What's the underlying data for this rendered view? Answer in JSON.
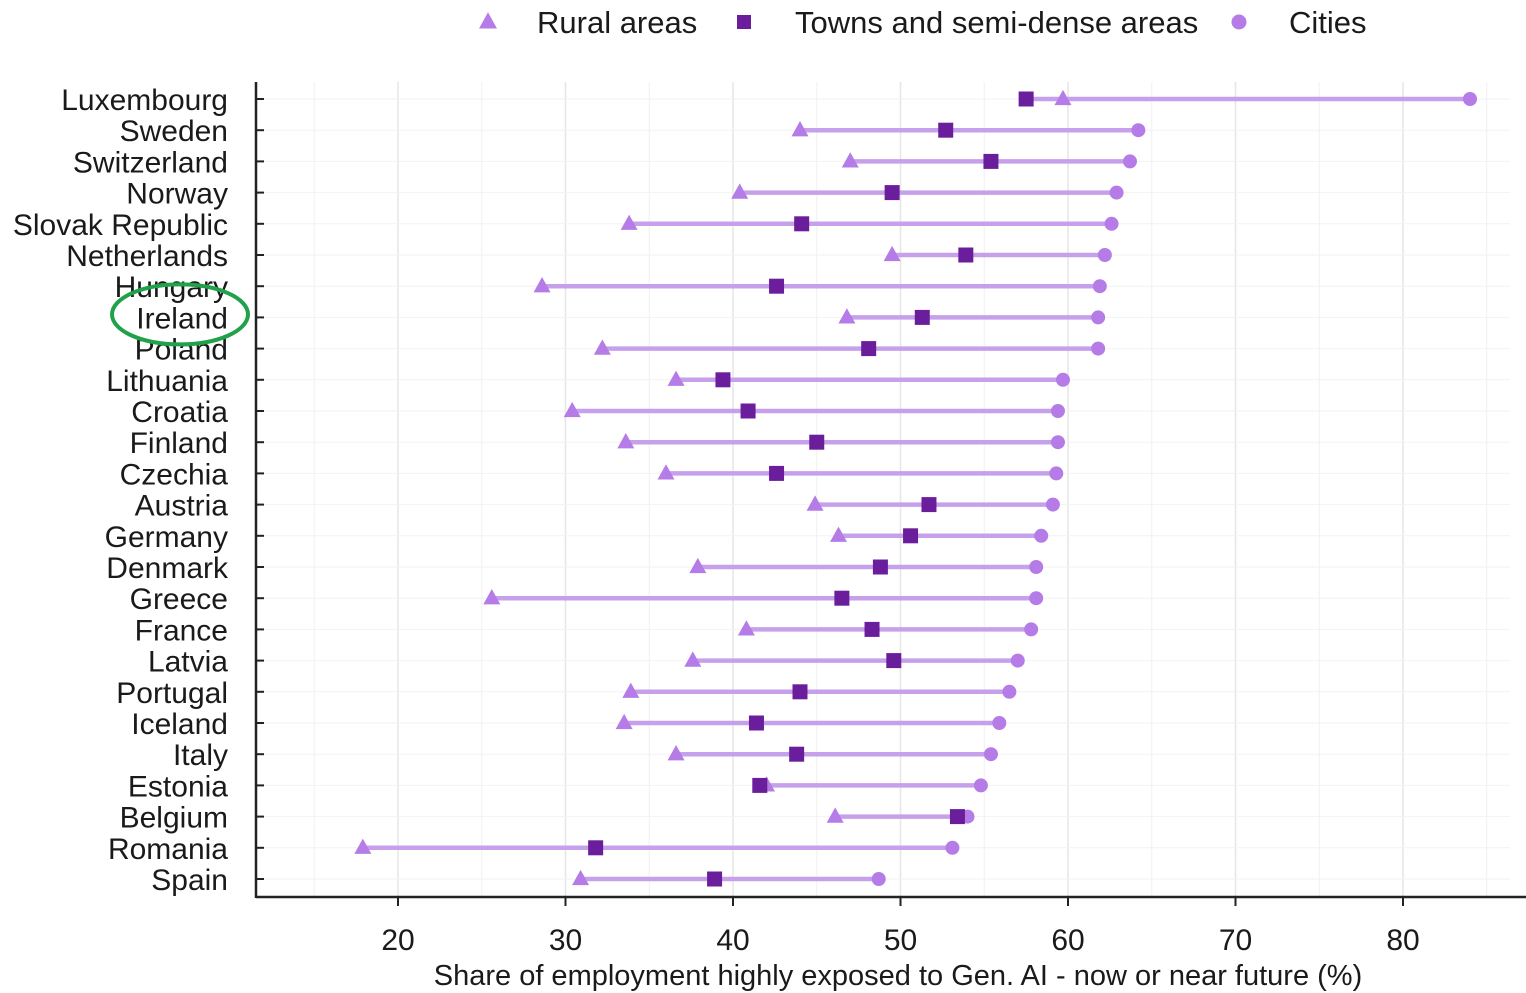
{
  "chart_data": {
    "type": "dot-range",
    "xlabel": "Share of employment highly exposed to Gen. AI - now or near future (%)",
    "xlim": [
      12,
      86
    ],
    "xticks": [
      20,
      30,
      40,
      50,
      60,
      70,
      80
    ],
    "grid": true,
    "legend_position": "top",
    "colors": {
      "range_line": "#c7a0ec",
      "rural": "#b57be6",
      "towns": "#6a1e9c",
      "cities": "#b57be6",
      "highlight_ellipse": "#1fa24a"
    },
    "series": [
      {
        "key": "rural",
        "name": "Rural areas",
        "marker": "triangle-icon"
      },
      {
        "key": "towns",
        "name": "Towns and semi-dense areas",
        "marker": "square-icon"
      },
      {
        "key": "cities",
        "name": "Cities",
        "marker": "circle-icon"
      }
    ],
    "highlight": "Ireland",
    "countries": [
      {
        "name": "Luxembourg",
        "rural": 59.7,
        "towns": 57.5,
        "cities": 84.0
      },
      {
        "name": "Sweden",
        "rural": 44.0,
        "towns": 52.7,
        "cities": 64.2
      },
      {
        "name": "Switzerland",
        "rural": 47.0,
        "towns": 55.4,
        "cities": 63.7
      },
      {
        "name": "Norway",
        "rural": 40.4,
        "towns": 49.5,
        "cities": 62.9
      },
      {
        "name": "Slovak Republic",
        "rural": 33.8,
        "towns": 44.1,
        "cities": 62.6
      },
      {
        "name": "Netherlands",
        "rural": 49.5,
        "towns": 53.9,
        "cities": 62.2
      },
      {
        "name": "Hungary",
        "rural": 28.6,
        "towns": 42.6,
        "cities": 61.9
      },
      {
        "name": "Ireland",
        "rural": 46.8,
        "towns": 51.3,
        "cities": 61.8
      },
      {
        "name": "Poland",
        "rural": 32.2,
        "towns": 48.1,
        "cities": 61.8
      },
      {
        "name": "Lithuania",
        "rural": 36.6,
        "towns": 39.4,
        "cities": 59.7
      },
      {
        "name": "Croatia",
        "rural": 30.4,
        "towns": 40.9,
        "cities": 59.4
      },
      {
        "name": "Finland",
        "rural": 33.6,
        "towns": 45.0,
        "cities": 59.4
      },
      {
        "name": "Czechia",
        "rural": 36.0,
        "towns": 42.6,
        "cities": 59.3
      },
      {
        "name": "Austria",
        "rural": 44.9,
        "towns": 51.7,
        "cities": 59.1
      },
      {
        "name": "Germany",
        "rural": 46.3,
        "towns": 50.6,
        "cities": 58.4
      },
      {
        "name": "Denmark",
        "rural": 37.9,
        "towns": 48.8,
        "cities": 58.1
      },
      {
        "name": "Greece",
        "rural": 25.6,
        "towns": 46.5,
        "cities": 58.1
      },
      {
        "name": "France",
        "rural": 40.8,
        "towns": 48.3,
        "cities": 57.8
      },
      {
        "name": "Latvia",
        "rural": 37.6,
        "towns": 49.6,
        "cities": 57.0
      },
      {
        "name": "Portugal",
        "rural": 33.9,
        "towns": 44.0,
        "cities": 56.5
      },
      {
        "name": "Iceland",
        "rural": 33.5,
        "towns": 41.4,
        "cities": 55.9
      },
      {
        "name": "Italy",
        "rural": 36.6,
        "towns": 43.8,
        "cities": 55.4
      },
      {
        "name": "Estonia",
        "rural": 42.0,
        "towns": 41.6,
        "cities": 54.8
      },
      {
        "name": "Belgium",
        "rural": 46.1,
        "towns": 53.4,
        "cities": 54.0
      },
      {
        "name": "Romania",
        "rural": 17.9,
        "towns": 31.8,
        "cities": 53.1
      },
      {
        "name": "Spain",
        "rural": 30.9,
        "towns": 38.9,
        "cities": 48.7
      }
    ]
  }
}
